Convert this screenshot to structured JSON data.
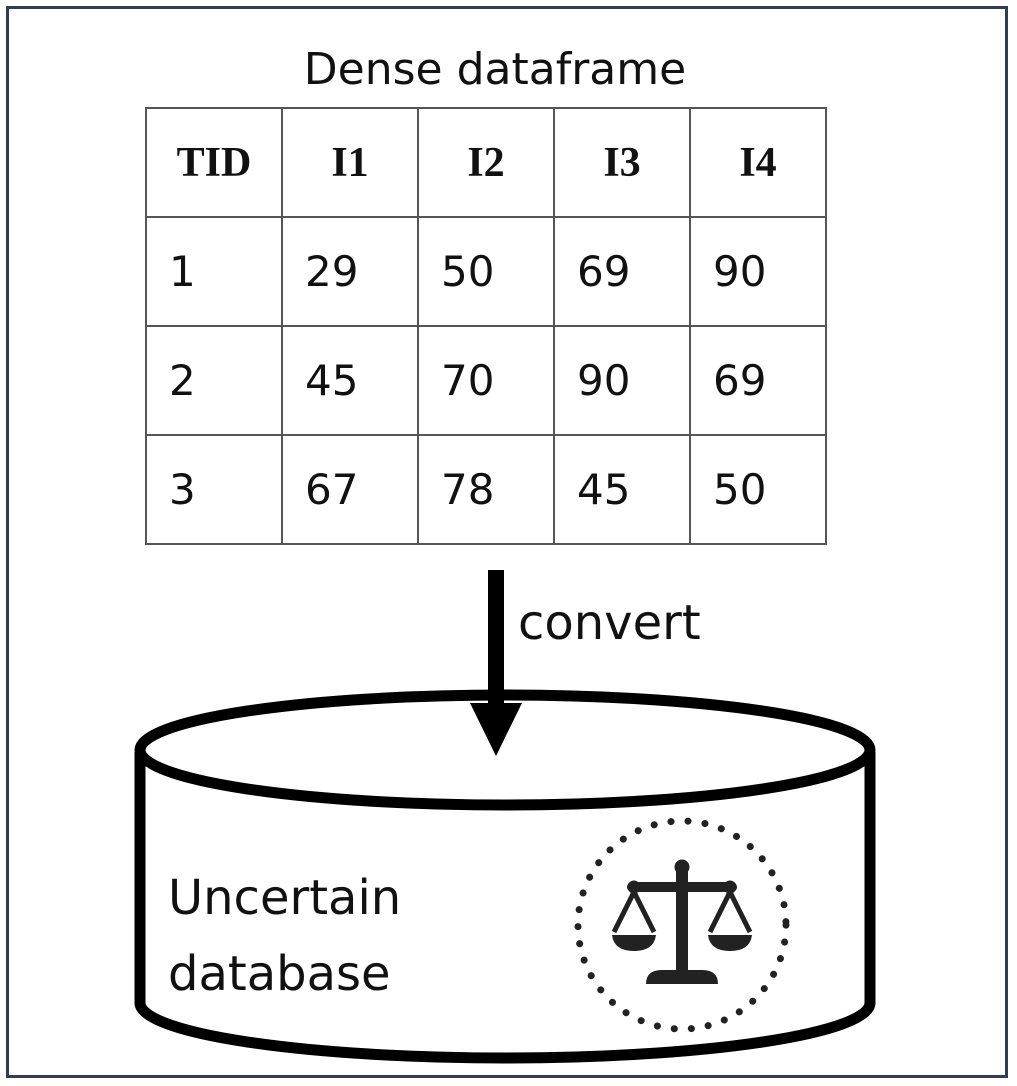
{
  "diagram": {
    "title": "Dense dataframe",
    "table": {
      "headers": [
        "TID",
        "I1",
        "I2",
        "I3",
        "I4"
      ],
      "rows": [
        [
          "1",
          "29",
          "50",
          "69",
          "90"
        ],
        [
          "2",
          "45",
          "70",
          "90",
          "69"
        ],
        [
          "3",
          "67",
          "78",
          "45",
          "50"
        ]
      ]
    },
    "arrow_label": "convert",
    "database": {
      "label_line1": "Uncertain",
      "label_line2": "database",
      "icon": "scales-icon"
    }
  },
  "colors": {
    "frame": "#2f3e56",
    "ink": "#111111",
    "icon": "#222222"
  }
}
